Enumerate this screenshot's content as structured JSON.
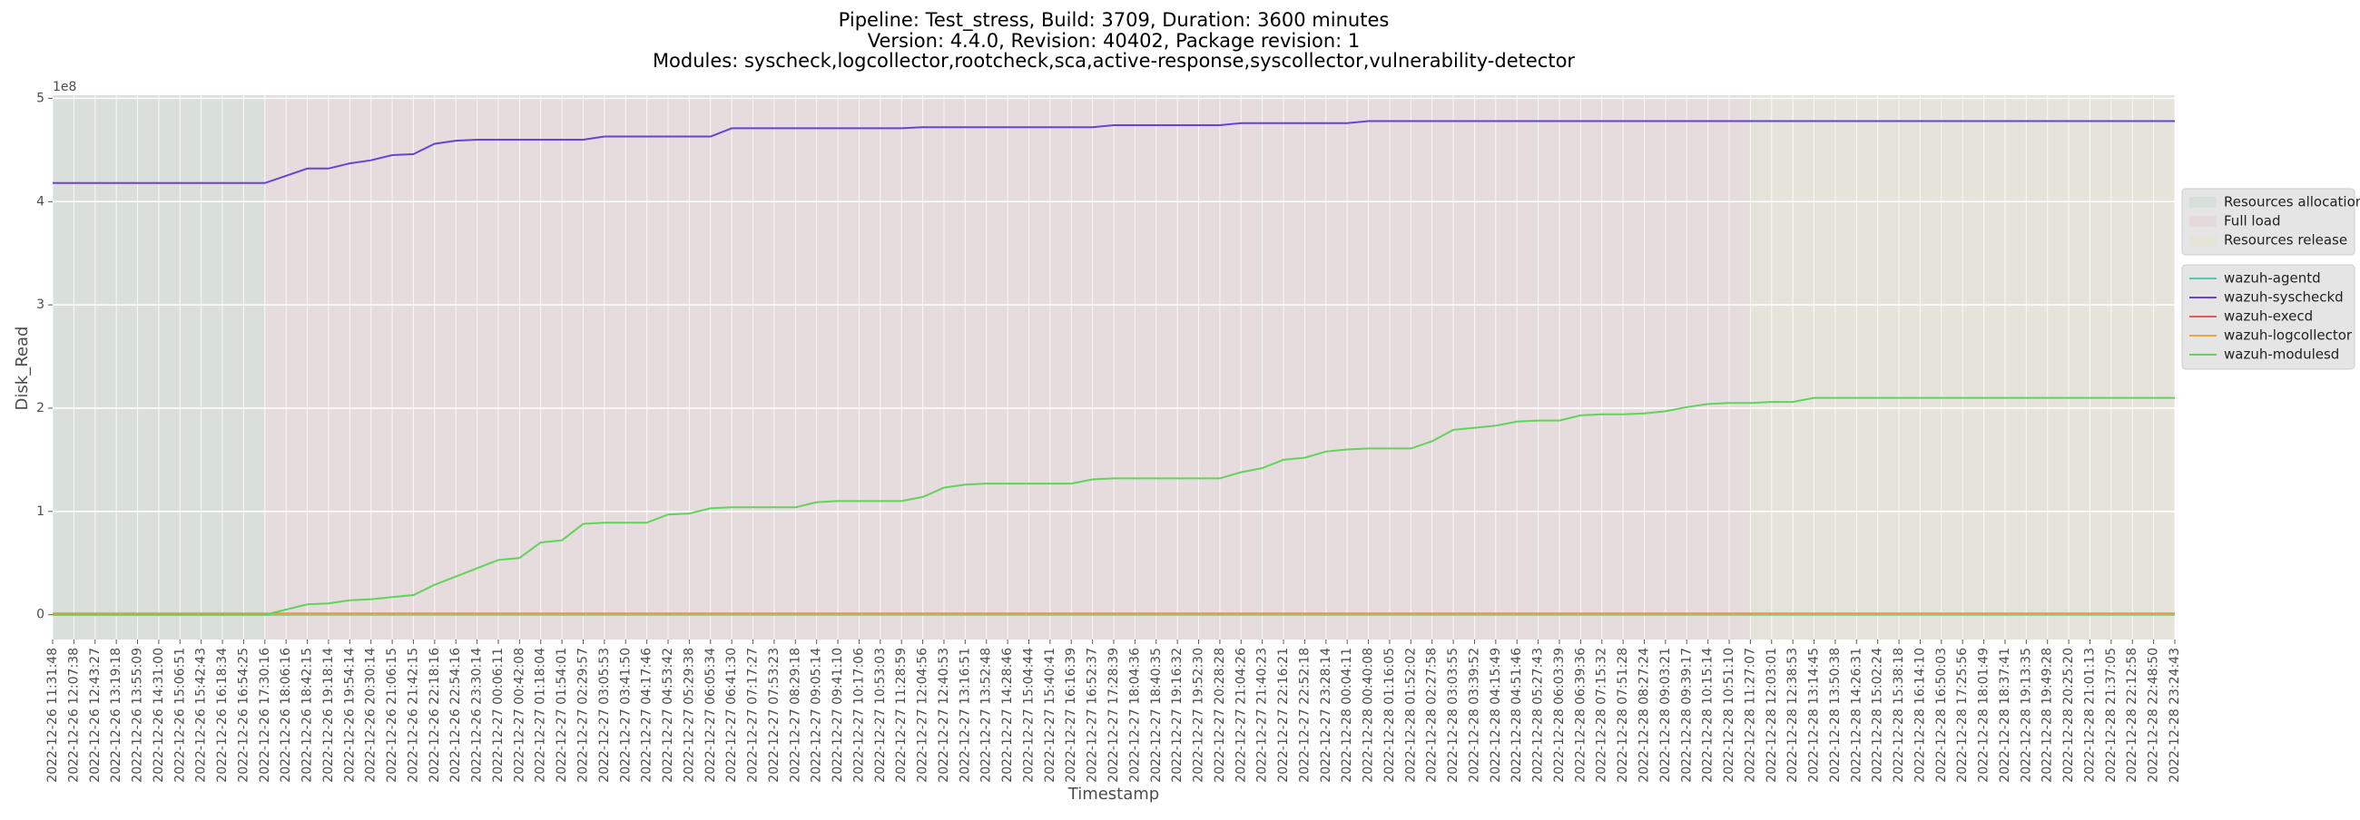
{
  "chart_data": {
    "type": "line",
    "title": [
      "Pipeline: Test_stress, Build: 3709, Duration: 3600 minutes",
      "Version: 4.4.0, Revision: 40402, Package revision: 1",
      "Modules: syscheck,logcollector,rootcheck,sca,active-response,syscollector,vulnerability-detector"
    ],
    "x_label": "Timestamp",
    "y_label": "Disk_Read",
    "y_offset_label": "1e8",
    "grid": true,
    "legend": "right",
    "ylim": [
      -24000000,
      503000000
    ],
    "yticks": [
      0,
      {
        "value": 100000000,
        "label": "1"
      },
      {
        "value": 200000000,
        "label": "2"
      },
      {
        "value": 300000000,
        "label": "3"
      },
      {
        "value": 400000000,
        "label": "4"
      },
      {
        "value": 500000000,
        "label": "5"
      }
    ],
    "categories": [
      "2022-12-26 11:31:48",
      "2022-12-26 12:07:38",
      "2022-12-26 12:43:27",
      "2022-12-26 13:19:18",
      "2022-12-26 13:55:09",
      "2022-12-26 14:31:00",
      "2022-12-26 15:06:51",
      "2022-12-26 15:42:43",
      "2022-12-26 16:18:34",
      "2022-12-26 16:54:25",
      "2022-12-26 17:30:16",
      "2022-12-26 18:06:16",
      "2022-12-26 18:42:15",
      "2022-12-26 19:18:14",
      "2022-12-26 19:54:14",
      "2022-12-26 20:30:14",
      "2022-12-26 21:06:15",
      "2022-12-26 21:42:15",
      "2022-12-26 22:18:16",
      "2022-12-26 22:54:16",
      "2022-12-26 23:30:14",
      "2022-12-27 00:06:11",
      "2022-12-27 00:42:08",
      "2022-12-27 01:18:04",
      "2022-12-27 01:54:01",
      "2022-12-27 02:29:57",
      "2022-12-27 03:05:53",
      "2022-12-27 03:41:50",
      "2022-12-27 04:17:46",
      "2022-12-27 04:53:42",
      "2022-12-27 05:29:38",
      "2022-12-27 06:05:34",
      "2022-12-27 06:41:30",
      "2022-12-27 07:17:27",
      "2022-12-27 07:53:23",
      "2022-12-27 08:29:18",
      "2022-12-27 09:05:14",
      "2022-12-27 09:41:10",
      "2022-12-27 10:17:06",
      "2022-12-27 10:53:03",
      "2022-12-27 11:28:59",
      "2022-12-27 12:04:56",
      "2022-12-27 12:40:53",
      "2022-12-27 13:16:51",
      "2022-12-27 13:52:48",
      "2022-12-27 14:28:46",
      "2022-12-27 15:04:44",
      "2022-12-27 15:40:41",
      "2022-12-27 16:16:39",
      "2022-12-27 16:52:37",
      "2022-12-27 17:28:39",
      "2022-12-27 18:04:36",
      "2022-12-27 18:40:35",
      "2022-12-27 19:16:32",
      "2022-12-27 19:52:30",
      "2022-12-27 20:28:28",
      "2022-12-27 21:04:26",
      "2022-12-27 21:40:23",
      "2022-12-27 22:16:21",
      "2022-12-27 22:52:18",
      "2022-12-27 23:28:14",
      "2022-12-28 00:04:11",
      "2022-12-28 00:40:08",
      "2022-12-28 01:16:05",
      "2022-12-28 01:52:02",
      "2022-12-28 02:27:58",
      "2022-12-28 03:03:55",
      "2022-12-28 03:39:52",
      "2022-12-28 04:15:49",
      "2022-12-28 04:51:46",
      "2022-12-28 05:27:43",
      "2022-12-28 06:03:39",
      "2022-12-28 06:39:36",
      "2022-12-28 07:15:32",
      "2022-12-28 07:51:28",
      "2022-12-28 08:27:24",
      "2022-12-28 09:03:21",
      "2022-12-28 09:39:17",
      "2022-12-28 10:15:14",
      "2022-12-28 10:51:10",
      "2022-12-28 11:27:07",
      "2022-12-28 12:03:01",
      "2022-12-28 12:38:53",
      "2022-12-28 13:14:45",
      "2022-12-28 13:50:38",
      "2022-12-28 14:26:31",
      "2022-12-28 15:02:24",
      "2022-12-28 15:38:18",
      "2022-12-28 16:14:10",
      "2022-12-28 16:50:03",
      "2022-12-28 17:25:56",
      "2022-12-28 18:01:49",
      "2022-12-28 18:37:41",
      "2022-12-28 19:13:35",
      "2022-12-28 19:49:28",
      "2022-12-28 20:25:20",
      "2022-12-28 21:01:13",
      "2022-12-28 21:37:05",
      "2022-12-28 22:12:58",
      "2022-12-28 22:48:50",
      "2022-12-28 23:24:43"
    ],
    "spans": [
      {
        "name": "Resources allocation",
        "color": "#d7dfd9",
        "start": "2022-12-26 11:31:48",
        "end": "2022-12-26 17:30:16"
      },
      {
        "name": "Full load",
        "color": "#e6d9dc",
        "start": "2022-12-26 17:30:16",
        "end": "2022-12-28 11:27:07"
      },
      {
        "name": "Resources release",
        "color": "#e4e4d8",
        "start": "2022-12-28 11:27:07",
        "end": "2022-12-28 23:24:43"
      }
    ],
    "series": [
      {
        "name": "wazuh-agentd",
        "color": "#4fc8b4",
        "values": [
          0,
          0,
          0,
          0,
          0,
          0,
          0,
          0,
          0,
          0,
          0,
          0,
          0,
          0,
          0,
          0,
          0,
          0,
          0,
          0,
          0,
          0,
          0,
          0,
          0,
          0,
          0,
          0,
          0,
          0,
          0,
          0,
          0,
          0,
          0,
          0,
          0,
          0,
          0,
          0,
          0,
          0,
          0,
          0,
          0,
          0,
          0,
          0,
          0,
          0,
          0,
          0,
          0,
          0,
          0,
          0,
          0,
          0,
          0,
          0,
          0,
          0,
          0,
          0,
          0,
          0,
          0,
          0,
          0,
          0,
          0,
          0,
          0,
          0,
          0,
          0,
          0,
          0,
          0,
          0,
          0,
          0,
          0,
          0,
          0,
          0,
          0,
          0,
          0,
          0,
          0,
          0,
          0,
          0,
          0,
          0,
          0,
          0,
          0,
          0,
          0
        ]
      },
      {
        "name": "wazuh-syscheckd",
        "color": "#6a42d6",
        "values": [
          418000000,
          418000000,
          418000000,
          418000000,
          418000000,
          418000000,
          418000000,
          418000000,
          418000000,
          418000000,
          418000000,
          425000000,
          432000000,
          432000000,
          437000000,
          440000000,
          445000000,
          446000000,
          456000000,
          459000000,
          460000000,
          460000000,
          460000000,
          460000000,
          460000000,
          460000000,
          463000000,
          463000000,
          463000000,
          463000000,
          463000000,
          463000000,
          471000000,
          471000000,
          471000000,
          471000000,
          471000000,
          471000000,
          471000000,
          471000000,
          471000000,
          472000000,
          472000000,
          472000000,
          472000000,
          472000000,
          472000000,
          472000000,
          472000000,
          472000000,
          474000000,
          474000000,
          474000000,
          474000000,
          474000000,
          474000000,
          476000000,
          476000000,
          476000000,
          476000000,
          476000000,
          476000000,
          478000000,
          478000000,
          478000000,
          478000000,
          478000000,
          478000000,
          478000000,
          478000000,
          478000000,
          478000000,
          478000000,
          478000000,
          478000000,
          478000000,
          478000000,
          478000000,
          478000000,
          478000000,
          478000000,
          478000000,
          478000000,
          478000000,
          478000000,
          478000000,
          478000000,
          478000000,
          478000000,
          478000000,
          478000000,
          478000000,
          478000000,
          478000000,
          478000000,
          478000000,
          478000000,
          478000000,
          478000000,
          478000000,
          478000000
        ]
      },
      {
        "name": "wazuh-execd",
        "color": "#e8585b",
        "values": [
          1000000,
          1000000,
          1000000,
          1000000,
          1000000,
          1000000,
          1000000,
          1000000,
          1000000,
          1000000,
          1000000,
          1000000,
          1000000,
          1000000,
          1000000,
          1000000,
          1000000,
          1000000,
          1000000,
          1000000,
          1000000,
          1000000,
          1000000,
          1000000,
          1000000,
          1000000,
          1000000,
          1000000,
          1000000,
          1000000,
          1000000,
          1000000,
          1000000,
          1000000,
          1000000,
          1000000,
          1000000,
          1000000,
          1000000,
          1000000,
          1000000,
          1000000,
          1000000,
          1000000,
          1000000,
          1000000,
          1000000,
          1000000,
          1000000,
          1000000,
          1000000,
          1000000,
          1000000,
          1000000,
          1000000,
          1000000,
          1000000,
          1000000,
          1000000,
          1000000,
          1000000,
          1000000,
          1000000,
          1000000,
          1000000,
          1000000,
          1000000,
          1000000,
          1000000,
          1000000,
          1000000,
          1000000,
          1000000,
          1000000,
          1000000,
          1000000,
          1000000,
          1000000,
          1000000,
          1000000,
          1000000,
          1000000,
          1000000,
          1000000,
          1000000,
          1000000,
          1000000,
          1000000,
          1000000,
          1000000,
          1000000,
          1000000,
          1000000,
          1000000,
          1000000,
          1000000,
          1000000,
          1000000,
          1000000,
          1000000,
          1000000
        ]
      },
      {
        "name": "wazuh-logcollector",
        "color": "#f2a33a",
        "values": [
          500000,
          500000,
          500000,
          500000,
          500000,
          500000,
          500000,
          500000,
          500000,
          500000,
          500000,
          500000,
          500000,
          500000,
          500000,
          500000,
          500000,
          500000,
          500000,
          500000,
          500000,
          500000,
          500000,
          500000,
          500000,
          500000,
          500000,
          500000,
          500000,
          500000,
          500000,
          500000,
          500000,
          500000,
          500000,
          500000,
          500000,
          500000,
          500000,
          500000,
          500000,
          500000,
          500000,
          500000,
          500000,
          500000,
          500000,
          500000,
          500000,
          500000,
          500000,
          500000,
          500000,
          500000,
          500000,
          500000,
          500000,
          500000,
          500000,
          500000,
          500000,
          500000,
          500000,
          500000,
          500000,
          500000,
          500000,
          500000,
          500000,
          500000,
          500000,
          500000,
          500000,
          500000,
          500000,
          500000,
          500000,
          500000,
          500000,
          500000,
          500000,
          500000,
          500000,
          500000,
          500000,
          500000,
          500000,
          500000,
          500000,
          500000,
          500000,
          500000,
          500000,
          500000,
          500000,
          500000,
          500000,
          500000,
          500000,
          500000,
          500000
        ]
      },
      {
        "name": "wazuh-modulesd",
        "color": "#62d35c",
        "values": [
          0,
          0,
          0,
          0,
          0,
          0,
          0,
          0,
          0,
          0,
          0,
          5000000,
          10000000,
          11000000,
          14000000,
          15000000,
          17000000,
          19000000,
          29000000,
          37000000,
          45000000,
          53000000,
          55000000,
          70000000,
          72000000,
          88000000,
          89000000,
          89000000,
          89000000,
          97000000,
          98000000,
          103000000,
          104000000,
          104000000,
          104000000,
          104000000,
          109000000,
          110000000,
          110000000,
          110000000,
          110000000,
          114000000,
          123000000,
          126000000,
          127000000,
          127000000,
          127000000,
          127000000,
          127000000,
          131000000,
          132000000,
          132000000,
          132000000,
          132000000,
          132000000,
          132000000,
          138000000,
          142000000,
          150000000,
          152000000,
          158000000,
          160000000,
          161000000,
          161000000,
          161000000,
          168000000,
          179000000,
          181000000,
          183000000,
          187000000,
          188000000,
          188000000,
          193000000,
          194000000,
          194000000,
          195000000,
          197000000,
          201000000,
          204000000,
          205000000,
          205000000,
          206000000,
          206000000,
          210000000,
          210000000,
          210000000,
          210000000,
          210000000,
          210000000,
          210000000,
          210000000,
          210000000,
          210000000,
          210000000,
          210000000,
          210000000,
          210000000,
          210000000,
          210000000,
          210000000,
          210000000
        ]
      }
    ]
  }
}
